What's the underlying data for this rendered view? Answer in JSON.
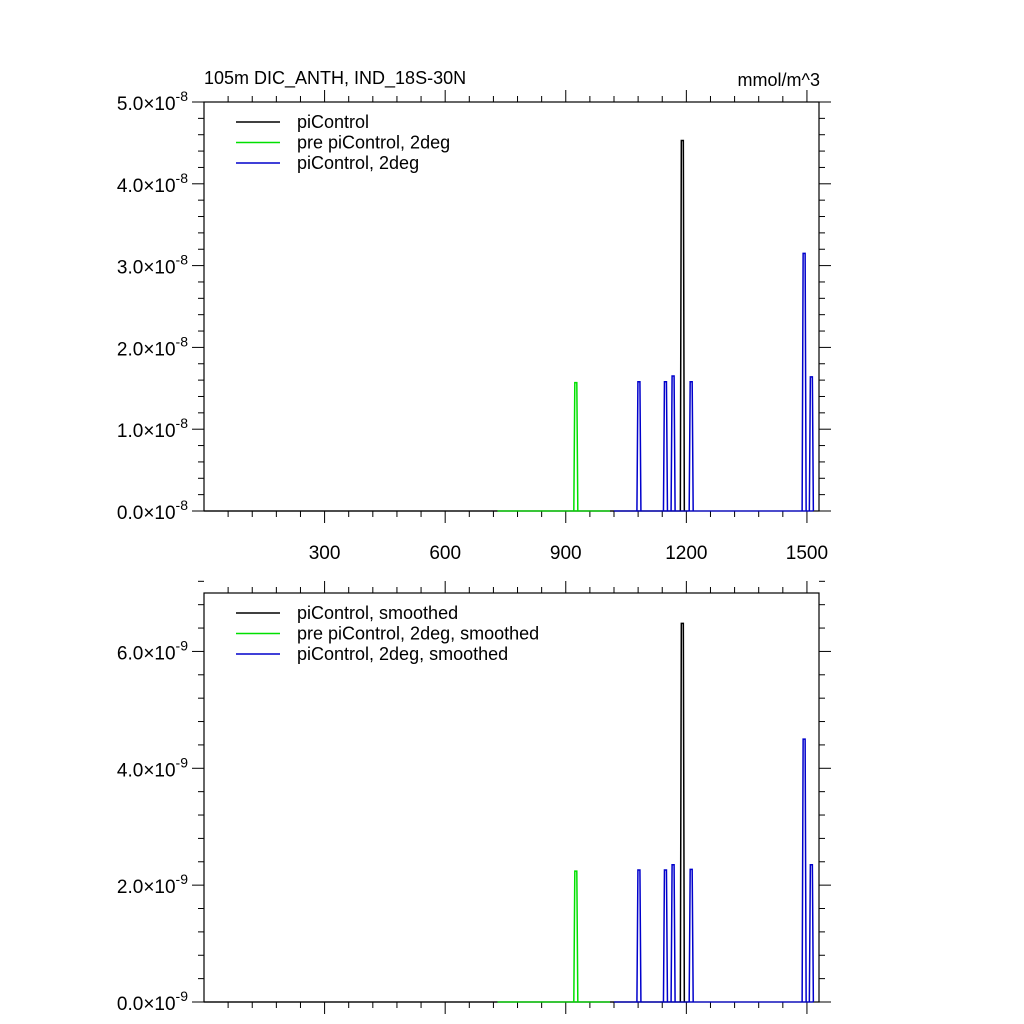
{
  "chart_data": [
    {
      "type": "line",
      "title": "105m DIC_ANTH, IND_18S-30N",
      "units": "mmol/m^3",
      "xlim": [
        0,
        1530
      ],
      "ylim": [
        0,
        5e-08
      ],
      "x_ticks": [
        300,
        600,
        900,
        1200,
        1500
      ],
      "y_ticks": [
        {
          "mant": "0.0",
          "exp": "-8",
          "value": 0
        },
        {
          "mant": "1.0",
          "exp": "-8",
          "value": 1e-08
        },
        {
          "mant": "2.0",
          "exp": "-8",
          "value": 2e-08
        },
        {
          "mant": "3.0",
          "exp": "-8",
          "value": 3e-08
        },
        {
          "mant": "4.0",
          "exp": "-8",
          "value": 4e-08
        },
        {
          "mant": "5.0",
          "exp": "-8",
          "value": 5e-08
        }
      ],
      "legend_position": "top-left",
      "series": [
        {
          "name": "piControl",
          "color": "#000000",
          "x_range": [
            0,
            1205
          ],
          "spikes": [
            {
              "x": 1190,
              "y": 4.53e-08
            }
          ]
        },
        {
          "name": "pre piControl, 2deg",
          "color": "#00e000",
          "x_range": [
            730,
            1010
          ],
          "spikes": [
            {
              "x": 925,
              "y": 1.57e-08
            }
          ]
        },
        {
          "name": "piControl, 2deg",
          "color": "#0000cc",
          "x_range": [
            1020,
            1515
          ],
          "spikes": [
            {
              "x": 1082,
              "y": 1.58e-08
            },
            {
              "x": 1148,
              "y": 1.58e-08
            },
            {
              "x": 1167,
              "y": 1.65e-08
            },
            {
              "x": 1212,
              "y": 1.58e-08
            },
            {
              "x": 1493,
              "y": 3.15e-08
            },
            {
              "x": 1511,
              "y": 1.64e-08
            }
          ]
        }
      ]
    },
    {
      "type": "line",
      "xlim": [
        0,
        1530
      ],
      "ylim": [
        0,
        7e-09
      ],
      "x_ticks": [
        300,
        600,
        900,
        1200,
        1500
      ],
      "y_ticks": [
        {
          "mant": "0.0",
          "exp": "-9",
          "value": 0
        },
        {
          "mant": "2.0",
          "exp": "-9",
          "value": 2e-09
        },
        {
          "mant": "4.0",
          "exp": "-9",
          "value": 4e-09
        },
        {
          "mant": "6.0",
          "exp": "-9",
          "value": 6e-09
        }
      ],
      "legend_position": "top-left",
      "series": [
        {
          "name": "piControl, smoothed",
          "color": "#000000",
          "x_range": [
            0,
            1205
          ],
          "spikes": [
            {
              "x": 1190,
              "y": 6.48e-09
            }
          ]
        },
        {
          "name": "pre piControl, 2deg, smoothed",
          "color": "#00e000",
          "x_range": [
            730,
            1010
          ],
          "spikes": [
            {
              "x": 925,
              "y": 2.24e-09
            }
          ]
        },
        {
          "name": "piControl, 2deg, smoothed",
          "color": "#0000cc",
          "x_range": [
            1020,
            1515
          ],
          "spikes": [
            {
              "x": 1082,
              "y": 2.26e-09
            },
            {
              "x": 1148,
              "y": 2.26e-09
            },
            {
              "x": 1167,
              "y": 2.35e-09
            },
            {
              "x": 1212,
              "y": 2.27e-09
            },
            {
              "x": 1493,
              "y": 4.5e-09
            },
            {
              "x": 1511,
              "y": 2.35e-09
            }
          ]
        }
      ]
    }
  ]
}
